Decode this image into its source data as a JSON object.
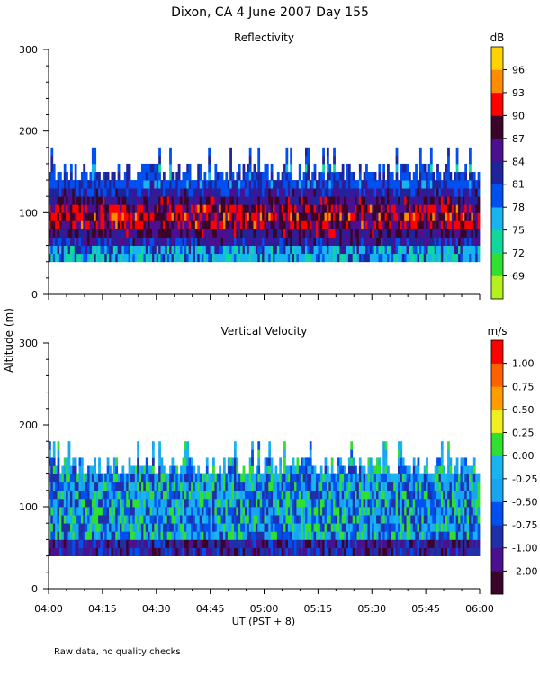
{
  "figure": {
    "title": "Dixon, CA   4 June 2007   Day 155",
    "ylabel": "Altitude (m)",
    "xlabel": "UT  (PST + 8)",
    "footnote": "Raw data, no quality checks"
  },
  "chart_data": [
    {
      "type": "heatmap",
      "title": "Reflectivity",
      "ylim": [
        0,
        300
      ],
      "yticks": [
        "0",
        "100",
        "200",
        "300"
      ],
      "xlim": [
        "04:00",
        "06:00"
      ],
      "xticks": [
        "04:00",
        "04:15",
        "04:30",
        "04:45",
        "05:00",
        "05:15",
        "05:30",
        "05:45",
        "06:00"
      ],
      "colorbar": {
        "unit": "dB",
        "labels": [
          "69",
          "72",
          "75",
          "78",
          "81",
          "84",
          "87",
          "90",
          "93",
          "96"
        ],
        "colors": [
          "#b4f020",
          "#30e030",
          "#10d89c",
          "#18b4f0",
          "#0050f0",
          "#20249c",
          "#4a1090",
          "#3a0528",
          "#ff0000",
          "#ff8c00",
          "#ffd400"
        ]
      },
      "data_extent": {
        "min_altitude_m": 40,
        "typical_top_m": 160,
        "max_top_m": 180
      }
    },
    {
      "type": "heatmap",
      "title": "Vertical Velocity",
      "ylim": [
        0,
        300
      ],
      "yticks": [
        "0",
        "100",
        "200",
        "300"
      ],
      "xlim": [
        "04:00",
        "06:00"
      ],
      "xticks": [
        "04:00",
        "04:15",
        "04:30",
        "04:45",
        "05:00",
        "05:15",
        "05:30",
        "05:45",
        "06:00"
      ],
      "colorbar": {
        "unit": "m/s",
        "labels": [
          "-2.00",
          "-1.00",
          "-0.75",
          "-0.50",
          "-0.25",
          "0.00",
          "0.25",
          "0.50",
          "0.75",
          "1.00"
        ],
        "colors": [
          "#3a0528",
          "#4a1090",
          "#2030a8",
          "#0050f0",
          "#18a4f0",
          "#18b4f0",
          "#30e030",
          "#f0f020",
          "#ff9c00",
          "#ff6000",
          "#ff0000"
        ]
      },
      "data_extent": {
        "min_altitude_m": 40,
        "typical_top_m": 160,
        "max_top_m": 180
      }
    }
  ]
}
